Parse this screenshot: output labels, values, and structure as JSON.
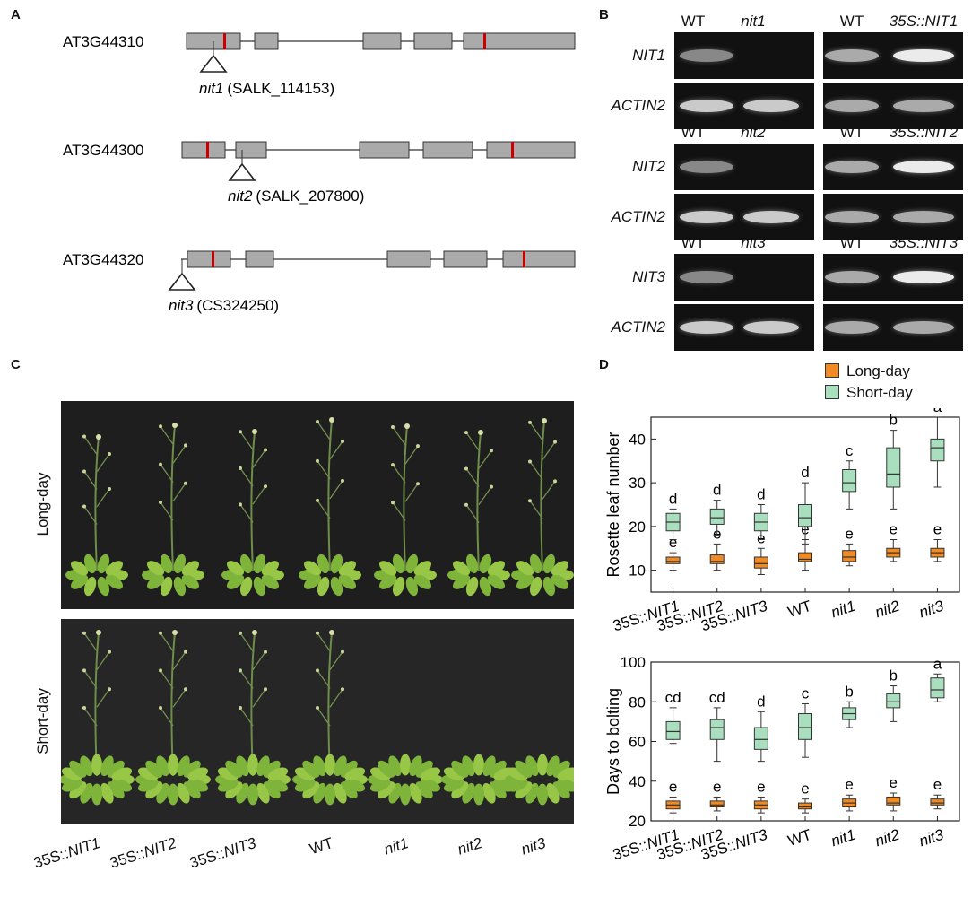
{
  "panels": {
    "a": "A",
    "b": "B",
    "c": "C",
    "d": "D"
  },
  "panel_a": {
    "genes": [
      {
        "id": "AT3G44310",
        "allele": "nit1",
        "line": "(SALK_114153)"
      },
      {
        "id": "AT3G44300",
        "allele": "nit2",
        "line": "(SALK_207800)"
      },
      {
        "id": "AT3G44320",
        "allele": "nit3",
        "line": "(CS324250)"
      }
    ],
    "colors": {
      "exon": "#aaaaaa",
      "mark": "#cc0000"
    }
  },
  "panel_b": {
    "groups": [
      {
        "left_cols": [
          "WT",
          "nit1"
        ],
        "right_cols": [
          "WT",
          "35S::NIT1"
        ],
        "rows": [
          "NIT1",
          "ACTIN2"
        ]
      },
      {
        "left_cols": [
          "WT",
          "nit2"
        ],
        "right_cols": [
          "WT",
          "35S::NIT2"
        ],
        "rows": [
          "NIT2",
          "ACTIN2"
        ]
      },
      {
        "left_cols": [
          "WT",
          "nit3"
        ],
        "right_cols": [
          "WT",
          "35S::NIT3"
        ],
        "rows": [
          "NIT3",
          "ACTIN2"
        ]
      }
    ]
  },
  "panel_c": {
    "rows": [
      "Long-day",
      "Short-day"
    ],
    "genotypes": [
      "35S::NIT1",
      "35S::NIT2",
      "35S::NIT3",
      "WT",
      "nit1",
      "nit2",
      "nit3"
    ]
  },
  "chart_data": [
    {
      "type": "box",
      "ylabel": "Rosette leaf number",
      "ylim": [
        5,
        45
      ],
      "yticks": [
        10,
        20,
        30,
        40
      ],
      "categories": [
        "35S::NIT1",
        "35S::NIT2",
        "35S::NIT3",
        "WT",
        "nit1",
        "nit2",
        "nit3"
      ],
      "legend": {
        "position": "top-right",
        "entries": [
          "Long-day",
          "Short-day"
        ]
      },
      "series": [
        {
          "name": "Long-day",
          "color": "#f08a24",
          "min": [
            10,
            10,
            9,
            10,
            11,
            12,
            12
          ],
          "q1": [
            11.5,
            11.5,
            10.5,
            12,
            12,
            13,
            13
          ],
          "median": [
            12,
            12,
            11.5,
            12.5,
            13,
            14,
            14
          ],
          "q3": [
            13,
            13.5,
            13,
            14,
            14.5,
            15,
            15
          ],
          "max": [
            14,
            16,
            15,
            17,
            16,
            17,
            17
          ],
          "letters": [
            "e",
            "e",
            "e",
            "e",
            "e",
            "e",
            "e"
          ]
        },
        {
          "name": "Short-day",
          "color": "#a9dfbf",
          "min": [
            17,
            18,
            17,
            16,
            24,
            24,
            29
          ],
          "q1": [
            19,
            20.5,
            19,
            20,
            28,
            29,
            35
          ],
          "median": [
            21,
            22,
            21,
            22,
            30,
            32,
            38
          ],
          "q3": [
            23,
            24,
            23,
            25,
            33,
            38,
            40
          ],
          "max": [
            24,
            26,
            25,
            30,
            35,
            42,
            45
          ],
          "letters": [
            "d",
            "d",
            "d",
            "d",
            "c",
            "b",
            "a"
          ]
        }
      ]
    },
    {
      "type": "box",
      "ylabel": "Days to bolting",
      "ylim": [
        20,
        100
      ],
      "yticks": [
        20,
        40,
        60,
        80,
        100
      ],
      "categories": [
        "35S::NIT1",
        "35S::NIT2",
        "35S::NIT3",
        "WT",
        "nit1",
        "nit2",
        "nit3"
      ],
      "series": [
        {
          "name": "Long-day",
          "color": "#f08a24",
          "min": [
            24,
            25,
            24,
            24,
            25,
            25,
            26
          ],
          "q1": [
            26,
            27,
            26,
            26,
            27,
            28,
            28
          ],
          "median": [
            28,
            28,
            28,
            27,
            29,
            29,
            29
          ],
          "q3": [
            30,
            30,
            30,
            29,
            31,
            32,
            31
          ],
          "max": [
            32,
            32,
            32,
            31,
            33,
            34,
            33
          ],
          "letters": [
            "e",
            "e",
            "e",
            "e",
            "e",
            "e",
            "e"
          ]
        },
        {
          "name": "Short-day",
          "color": "#a9dfbf",
          "min": [
            59,
            50,
            50,
            52,
            67,
            70,
            80
          ],
          "q1": [
            61,
            61,
            56,
            61,
            71,
            77,
            82
          ],
          "median": [
            65,
            67,
            61,
            67,
            74,
            80,
            86
          ],
          "q3": [
            70,
            71,
            67,
            74,
            77,
            84,
            92
          ],
          "max": [
            77,
            77,
            75,
            79,
            80,
            88,
            94
          ],
          "letters": [
            "cd",
            "cd",
            "d",
            "c",
            "b",
            "b",
            "a"
          ]
        }
      ]
    }
  ]
}
